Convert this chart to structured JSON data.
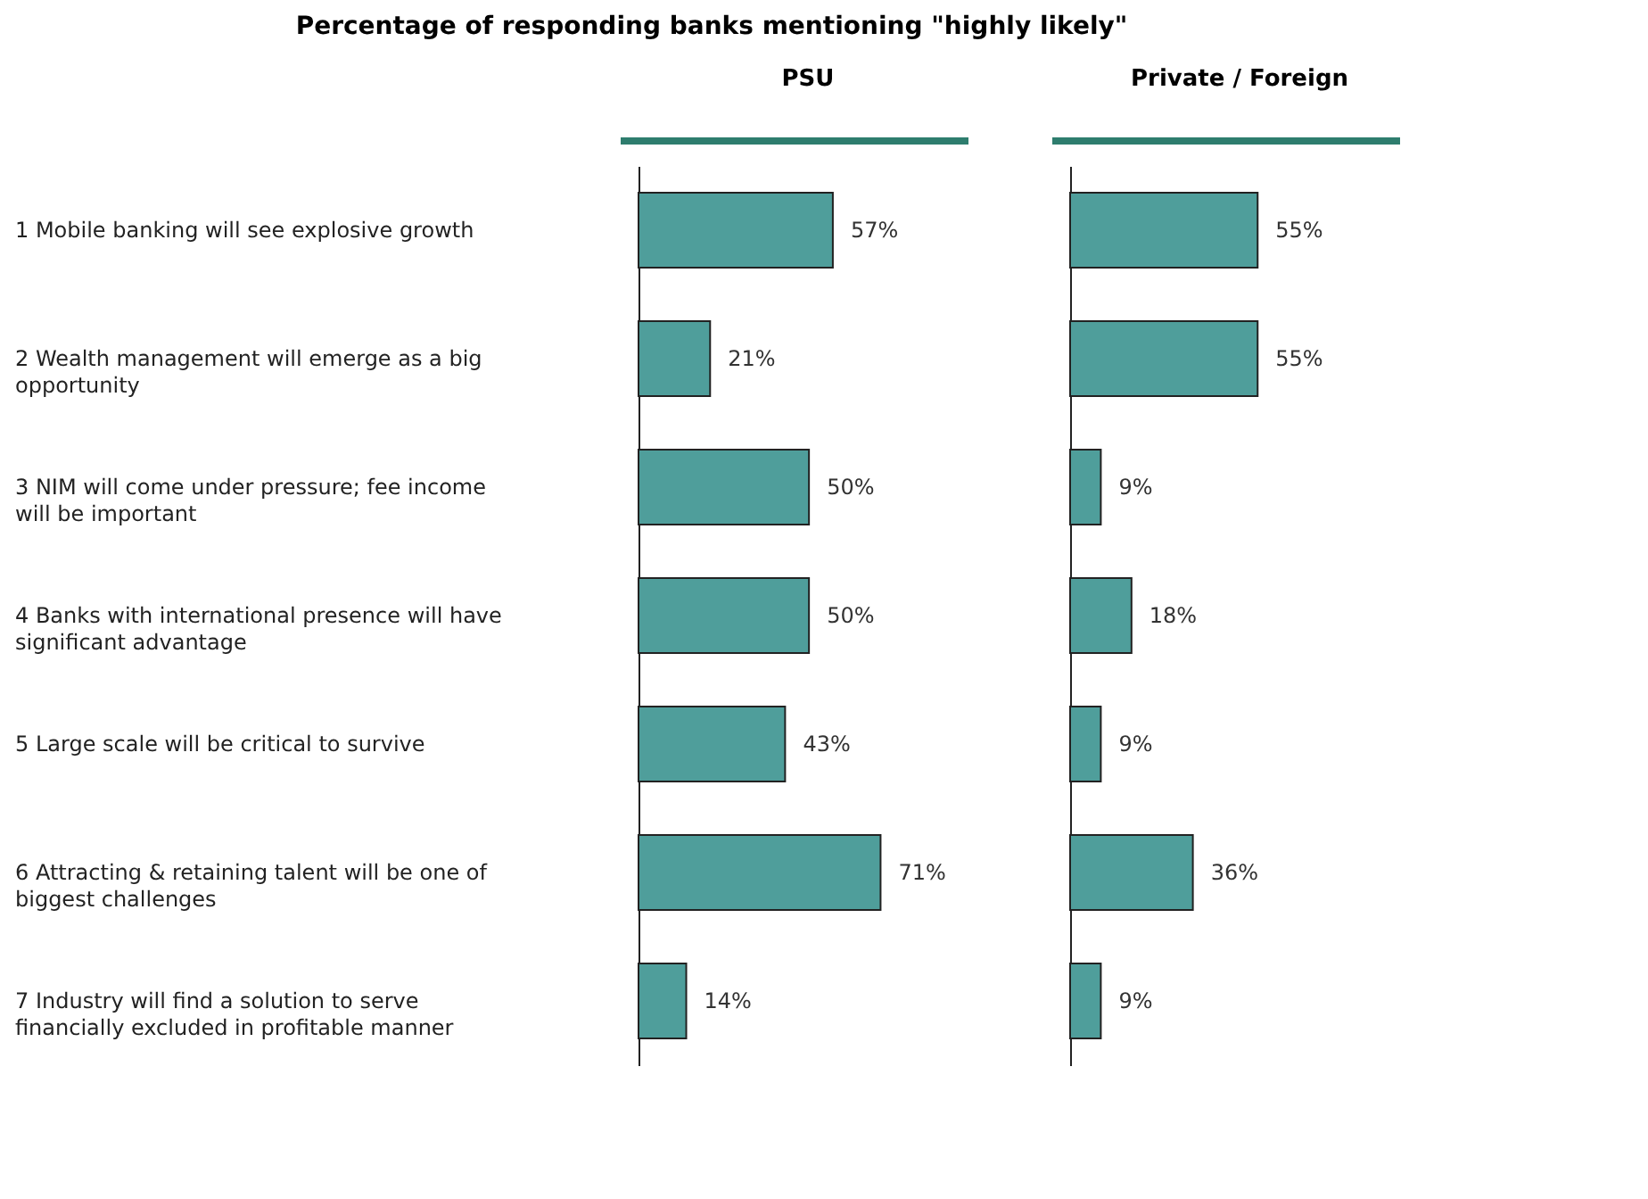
{
  "chart_data": [
    {
      "type": "bar",
      "orientation": "horizontal",
      "title": "Percentage of responding banks mentioning \"highly likely\"",
      "categories": [
        "1 Mobile banking will see explosive growth",
        "2 Wealth management will emerge as a big opportunity",
        "3 NIM will come under pressure; fee income will be important",
        "4 Banks with international presence will have significant advantage",
        "5 Large scale will be critical to survive",
        "6 Attracting & retaining talent will be one of biggest challenges",
        "7 Industry will find a solution to serve financially excluded in profitable manner"
      ],
      "series": [
        {
          "name": "PSU",
          "color": "#4f9e9b",
          "values": [
            57,
            21,
            50,
            50,
            43,
            71,
            14
          ],
          "value_labels": [
            "57%",
            "21%",
            "50%",
            "50%",
            "43%",
            "71%",
            "14%"
          ]
        }
      ],
      "grid": false,
      "tick_labels": "y"
    },
    {
      "type": "bar",
      "orientation": "horizontal",
      "categories": [
        null,
        null,
        null,
        null,
        null,
        null,
        null
      ],
      "series": [
        {
          "name": "Private / Foreign",
          "color": "#4f9e9b",
          "values": [
            55,
            55,
            9,
            18,
            9,
            36,
            9
          ],
          "value_labels": [
            "55%",
            "55%",
            "9%",
            "18%",
            "9%",
            "36%",
            "9%"
          ]
        }
      ],
      "grid": false,
      "tick_labels": false
    }
  ]
}
